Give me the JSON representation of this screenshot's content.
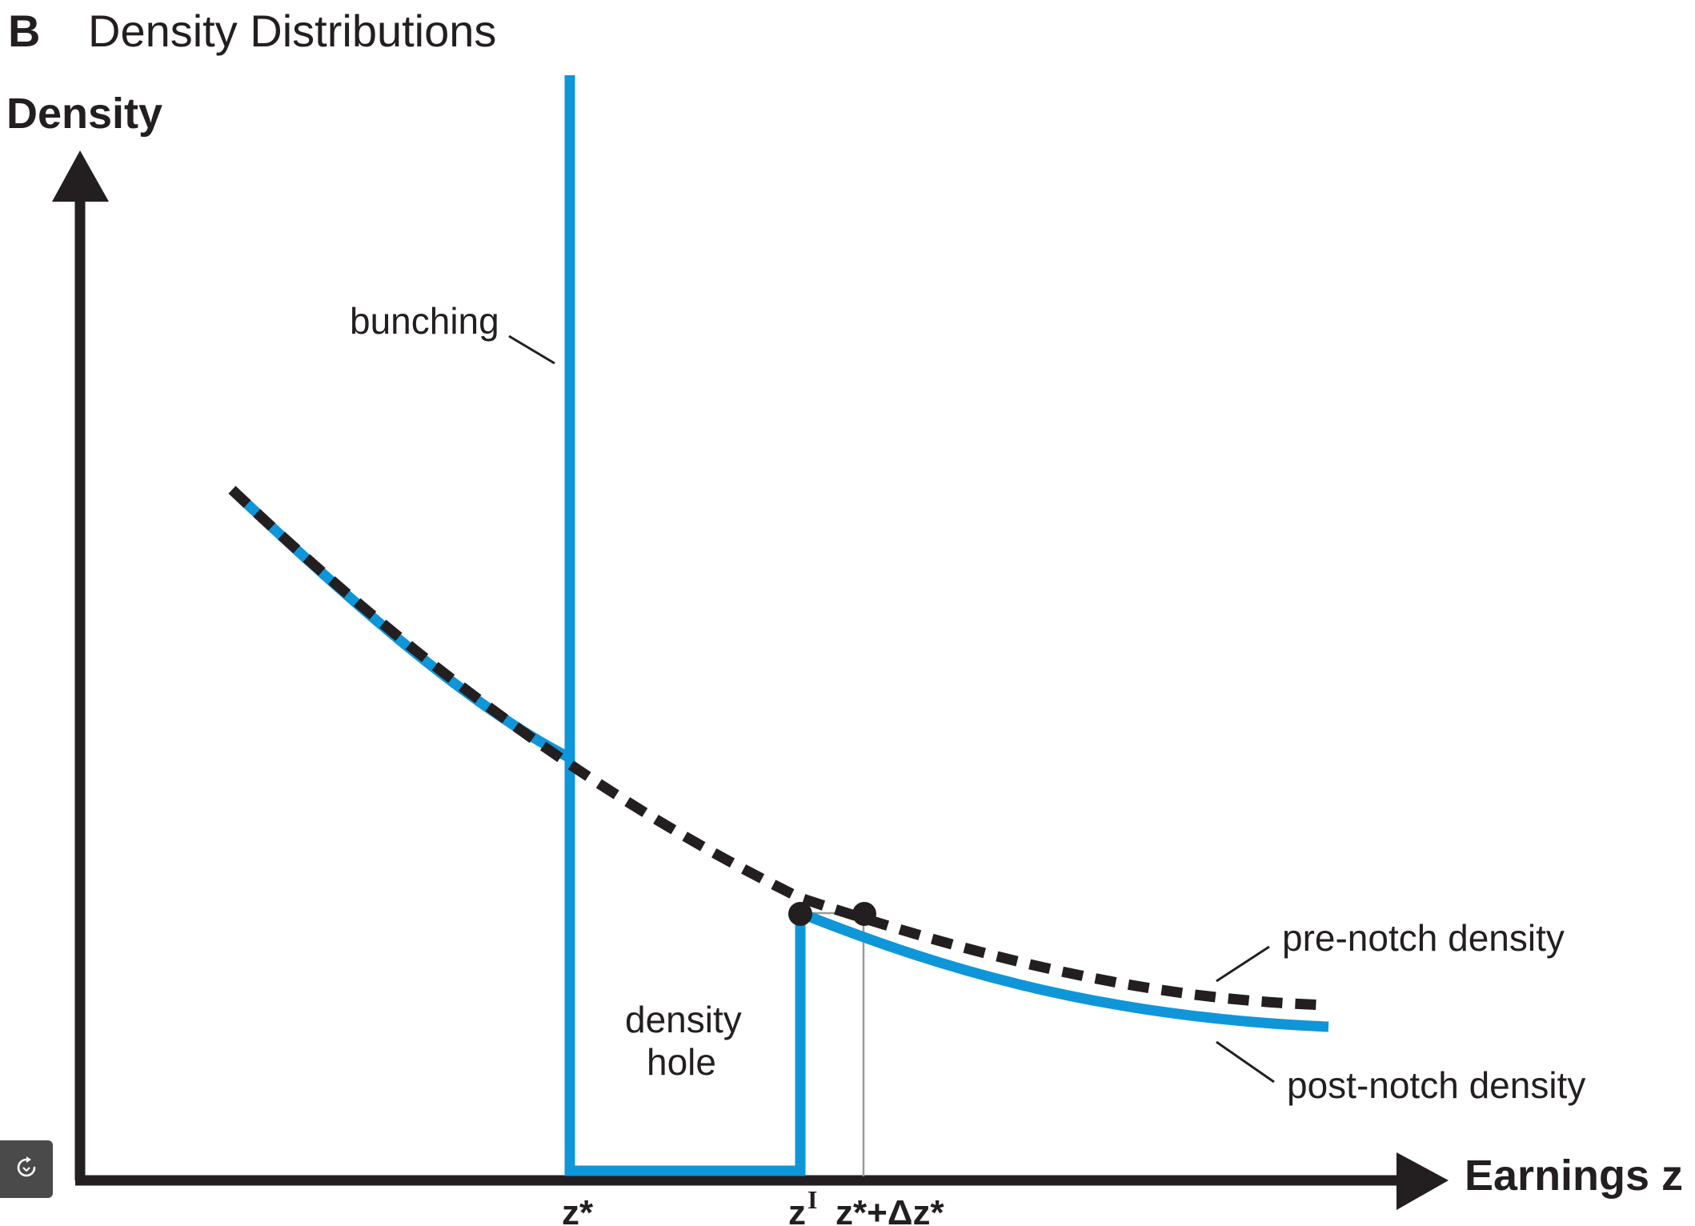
{
  "figure": {
    "panel_letter": "B",
    "panel_title": "Density Distributions",
    "y_axis_label": "Density",
    "x_axis_label": "Earnings z",
    "ticks": {
      "z_star": "z*",
      "z_i_base": "z",
      "z_i_sup": "I",
      "z_star_delta": "z*+Δz*"
    },
    "annotations": {
      "bunching": "bunching",
      "density_hole_line1": "density",
      "density_hole_line2": "hole",
      "pre_notch": "pre-notch density",
      "post_notch": "post-notch density"
    },
    "colors": {
      "post_notch_line": "#0f96d9",
      "pre_notch_line": "#231f20",
      "axes": "#231f20",
      "guide_line": "#9a9a9a"
    },
    "legend_style": {
      "pre_notch_density": "dashed black",
      "post_notch_density": "solid blue"
    }
  },
  "toolbar": {
    "refresh_icon": "refresh-icon"
  }
}
